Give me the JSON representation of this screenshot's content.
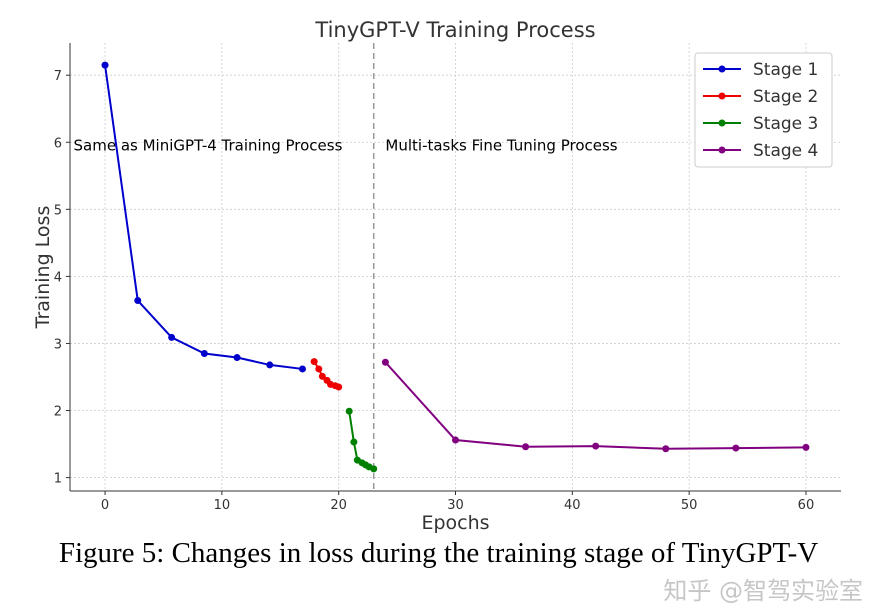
{
  "chart_data": {
    "type": "line",
    "title": "TinyGPT-V Training Process",
    "xlabel": "Epochs",
    "ylabel": "Training Loss",
    "xlim": [
      -3,
      63
    ],
    "ylim": [
      0.8,
      7.48
    ],
    "xticks": [
      0,
      10,
      20,
      30,
      40,
      50,
      60
    ],
    "yticks": [
      1,
      2,
      3,
      4,
      5,
      6,
      7
    ],
    "grid": true,
    "legend_placement": "top-right",
    "divider_x": 23,
    "annotations": [
      {
        "text": "Same as MiniGPT-4 Training Process",
        "x": -2.7,
        "y": 5.95
      },
      {
        "text": "Multi-tasks Fine Tuning Process",
        "x": 24,
        "y": 5.95
      }
    ],
    "series": [
      {
        "name": "Stage 1",
        "color": "#0000cc",
        "x": [
          0,
          2.8,
          5.7,
          8.5,
          11.3,
          14.1,
          16.9
        ],
        "y": [
          7.15,
          3.64,
          3.09,
          2.85,
          2.79,
          2.68,
          2.62
        ]
      },
      {
        "name": "Stage 2",
        "color": "#ee0000",
        "x": [
          17.9,
          18.3,
          18.6,
          19.0,
          19.3,
          19.7,
          20.0
        ],
        "y": [
          2.73,
          2.62,
          2.51,
          2.45,
          2.39,
          2.37,
          2.35
        ]
      },
      {
        "name": "Stage 3",
        "color": "#008000",
        "x": [
          20.9,
          21.3,
          21.6,
          22.0,
          22.3,
          22.6,
          23.0
        ],
        "y": [
          1.99,
          1.53,
          1.26,
          1.22,
          1.19,
          1.16,
          1.13
        ]
      },
      {
        "name": "Stage 4",
        "color": "#800080",
        "x": [
          24,
          30,
          36,
          42,
          48,
          54,
          60
        ],
        "y": [
          2.72,
          1.56,
          1.46,
          1.47,
          1.43,
          1.44,
          1.45
        ]
      }
    ]
  },
  "caption": "Figure 5: Changes in loss during the training stage of TinyGPT-V",
  "watermark": "知乎 @智驾实验室"
}
